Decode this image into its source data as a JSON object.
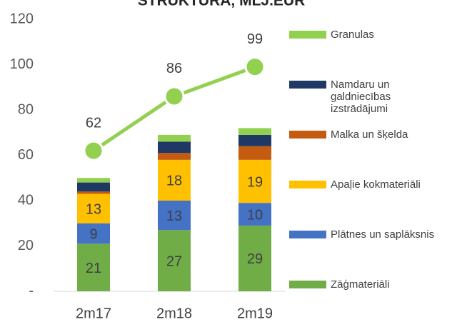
{
  "chart_data": {
    "type": "bar",
    "stacked": true,
    "title": "STRUKTŪRA, MLJ.EUR",
    "categories": [
      "2m17",
      "2m18",
      "2m19"
    ],
    "ylim": [
      0,
      120
    ],
    "yticks": [
      {
        "value": 0,
        "label": "-"
      },
      20,
      40,
      60,
      80,
      100,
      120
    ],
    "grid": false,
    "legend": "right",
    "series": [
      {
        "name": "Zāģmateriāli",
        "color": "#70ad47",
        "values": [
          21,
          27,
          29
        ],
        "show_labels": true
      },
      {
        "name": "Plātnes un saplāksnis",
        "color": "#4472c4",
        "values": [
          9,
          13,
          10
        ],
        "show_labels": true
      },
      {
        "name": "Apaļie kokmateriāli",
        "color": "#ffc000",
        "values": [
          13,
          18,
          19
        ],
        "show_labels": true
      },
      {
        "name": "Malka un šķelda",
        "color": "#c55a11",
        "values": [
          1,
          3,
          6
        ],
        "show_labels": false
      },
      {
        "name": "Namdaru un galdniecības izstrādājumi",
        "color": "#1f3864",
        "values": [
          4,
          5,
          5
        ],
        "show_labels": false
      },
      {
        "name": "Granulas",
        "color": "#92d050",
        "values": [
          2,
          3,
          3
        ],
        "show_labels": false
      }
    ],
    "line": {
      "color": "#92d050",
      "values": [
        62,
        86,
        99
      ]
    }
  }
}
